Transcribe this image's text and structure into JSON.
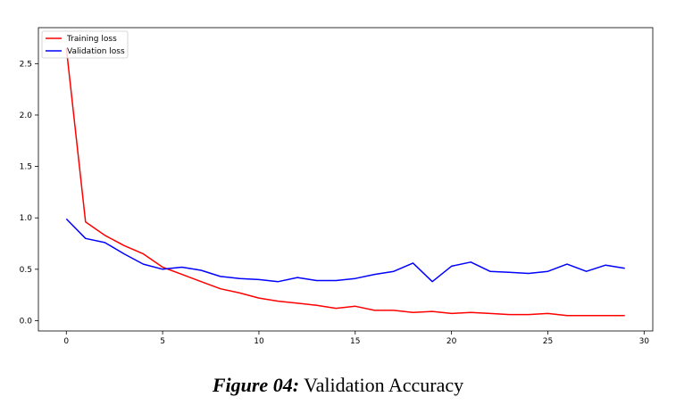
{
  "chart_data": {
    "type": "line",
    "x": [
      0,
      1,
      2,
      3,
      4,
      5,
      6,
      7,
      8,
      9,
      10,
      11,
      12,
      13,
      14,
      15,
      16,
      17,
      18,
      19,
      20,
      21,
      22,
      23,
      24,
      25,
      26,
      27,
      28,
      29
    ],
    "series": [
      {
        "name": "Training loss",
        "color": "#ff0000",
        "values": [
          2.65,
          0.96,
          0.83,
          0.73,
          0.65,
          0.52,
          0.45,
          0.38,
          0.31,
          0.27,
          0.22,
          0.19,
          0.17,
          0.15,
          0.12,
          0.14,
          0.1,
          0.1,
          0.08,
          0.09,
          0.07,
          0.08,
          0.07,
          0.06,
          0.06,
          0.07,
          0.05,
          0.05,
          0.05,
          0.05
        ]
      },
      {
        "name": "Validation loss",
        "color": "#0000ff",
        "values": [
          0.99,
          0.8,
          0.76,
          0.65,
          0.55,
          0.5,
          0.52,
          0.49,
          0.43,
          0.41,
          0.4,
          0.38,
          0.42,
          0.39,
          0.39,
          0.41,
          0.45,
          0.48,
          0.56,
          0.38,
          0.53,
          0.57,
          0.48,
          0.47,
          0.46,
          0.48,
          0.55,
          0.48,
          0.54,
          0.51
        ]
      }
    ],
    "x_ticks": [
      "0",
      "5",
      "10",
      "15",
      "20",
      "25",
      "30"
    ],
    "y_ticks": [
      "0.0",
      "0.5",
      "1.0",
      "1.5",
      "2.0",
      "2.5"
    ],
    "xlim": [
      -1.45,
      30.45
    ],
    "ylim": [
      -0.1,
      2.85
    ],
    "grid": false,
    "legend_position": "top-left"
  },
  "caption": {
    "label": "Figure 04:",
    "text": "Validation Accuracy"
  }
}
